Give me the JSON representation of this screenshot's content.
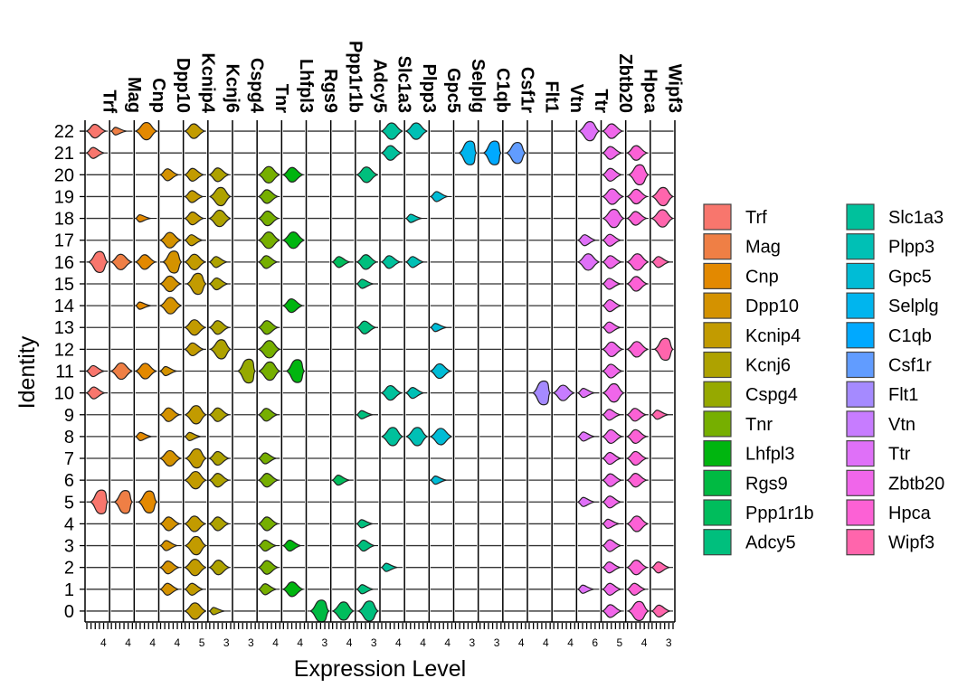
{
  "chart_data": {
    "type": "violin",
    "title": "",
    "xlabel": "Expression Level",
    "ylabel": "Identity",
    "identities": [
      "0",
      "1",
      "2",
      "3",
      "4",
      "5",
      "6",
      "7",
      "8",
      "9",
      "10",
      "11",
      "12",
      "13",
      "14",
      "15",
      "16",
      "17",
      "18",
      "19",
      "20",
      "21",
      "22"
    ],
    "genes": [
      {
        "name": "Trf",
        "color": "#F8766D",
        "max_tick": "4",
        "expr": {
          "5": 1.0,
          "16": 0.85,
          "11": 0.3,
          "10": 0.35,
          "21": 0.3,
          "22": 0.45
        }
      },
      {
        "name": "Mag",
        "color": "#EF7F45",
        "max_tick": "4",
        "expr": {
          "5": 0.95,
          "16": 0.55,
          "11": 0.6,
          "22": 0.12
        }
      },
      {
        "name": "Cnp",
        "color": "#E38900",
        "max_tick": "4",
        "expr": {
          "5": 0.9,
          "16": 0.5,
          "11": 0.55,
          "22": 0.65,
          "8": 0.15,
          "18": 0.1,
          "14": 0.1
        }
      },
      {
        "name": "Dpp10",
        "color": "#D49200",
        "max_tick": "4",
        "expr": {
          "16": 0.9,
          "17": 0.55,
          "15": 0.55,
          "14": 0.6,
          "7": 0.55,
          "4": 0.45,
          "2": 0.4,
          "3": 0.25,
          "20": 0.35,
          "1": 0.35,
          "9": 0.45,
          "11": 0.2
        }
      },
      {
        "name": "Kcnip4",
        "color": "#C29B00",
        "max_tick": "5",
        "expr": {
          "16": 0.55,
          "15": 0.85,
          "13": 0.55,
          "12": 0.4,
          "7": 0.75,
          "6": 0.65,
          "5": 0.0,
          "4": 0.55,
          "3": 0.7,
          "2": 0.6,
          "1": 0.35,
          "0": 0.6,
          "19": 0.35,
          "20": 0.4,
          "18": 0.4,
          "17": 0.3,
          "9": 0.7,
          "22": 0.5,
          "8": 0.15
        }
      },
      {
        "name": "Kcnj6",
        "color": "#AEA200",
        "max_tick": "3",
        "expr": {
          "19": 0.7,
          "18": 0.6,
          "20": 0.45,
          "13": 0.45,
          "12": 0.75,
          "16": 0.3,
          "15": 0.35,
          "7": 0.45,
          "6": 0.45,
          "4": 0.45,
          "2": 0.5,
          "9": 0.45,
          "0": 0.1
        }
      },
      {
        "name": "Cspg4",
        "color": "#96A900",
        "max_tick": "3",
        "expr": {
          "11": 1.0
        }
      },
      {
        "name": "Tnr",
        "color": "#76AF00",
        "max_tick": "4",
        "expr": {
          "20": 0.6,
          "19": 0.45,
          "18": 0.5,
          "17": 0.6,
          "13": 0.45,
          "12": 0.65,
          "11": 0.7,
          "16": 0.4,
          "9": 0.4,
          "7": 0.3,
          "6": 0.45,
          "4": 0.45,
          "3": 0.3,
          "2": 0.45,
          "1": 0.3
        }
      },
      {
        "name": "Lhfpl3",
        "color": "#00B50F",
        "max_tick": "4",
        "expr": {
          "20": 0.5,
          "17": 0.6,
          "14": 0.45,
          "11": 0.95,
          "3": 0.3,
          "1": 0.5
        }
      },
      {
        "name": "Rgs9",
        "color": "#00BA42",
        "max_tick": "3",
        "expr": {
          "0": 0.9
        }
      },
      {
        "name": "Ppp1r1b",
        "color": "#00BD5C",
        "max_tick": "4",
        "expr": {
          "0": 0.7,
          "16": 0.3,
          "6": 0.25
        }
      },
      {
        "name": "Adcy5",
        "color": "#00BF7D",
        "max_tick": "3",
        "expr": {
          "0": 0.8,
          "20": 0.55,
          "16": 0.5,
          "13": 0.4,
          "15": 0.2,
          "9": 0.15,
          "4": 0.15,
          "3": 0.3,
          "1": 0.2
        }
      },
      {
        "name": "Slc1a3",
        "color": "#00C19C",
        "max_tick": "4",
        "expr": {
          "22": 0.6,
          "21": 0.5,
          "16": 0.4,
          "10": 0.5,
          "8": 0.7,
          "2": 0.15
        }
      },
      {
        "name": "Plpp3",
        "color": "#00C0B5",
        "max_tick": "4",
        "expr": {
          "22": 0.6,
          "16": 0.3,
          "10": 0.3,
          "8": 0.7,
          "18": 0.15
        }
      },
      {
        "name": "Gpc5",
        "color": "#00BCD6",
        "max_tick": "4",
        "expr": {
          "19": 0.25,
          "11": 0.5,
          "8": 0.6,
          "6": 0.15,
          "13": 0.15
        }
      },
      {
        "name": "Selplg",
        "color": "#00B5EE",
        "max_tick": "3",
        "expr": {
          "21": 1.0
        }
      },
      {
        "name": "C1qb",
        "color": "#00A9FF",
        "max_tick": "3",
        "expr": {
          "21": 1.0
        }
      },
      {
        "name": "Csf1r",
        "color": "#619CFF",
        "max_tick": "4",
        "expr": {
          "21": 0.85
        }
      },
      {
        "name": "Flt1",
        "color": "#A58AFF",
        "max_tick": "4",
        "expr": {
          "10": 1.0
        }
      },
      {
        "name": "Vtn",
        "color": "#C77CFF",
        "max_tick": "4",
        "expr": {
          "10": 0.55
        }
      },
      {
        "name": "Ttr",
        "color": "#DF70F8",
        "max_tick": "6",
        "expr": {
          "22": 0.75,
          "16": 0.6,
          "17": 0.3,
          "10": 0.2,
          "8": 0.2,
          "5": 0.2,
          "1": 0.15
        }
      },
      {
        "name": "Zbtb20",
        "color": "#F066EA",
        "max_tick": "5",
        "expr": {
          "22": 0.5,
          "21": 0.4,
          "20": 0.4,
          "19": 0.55,
          "18": 0.7,
          "17": 0.35,
          "16": 0.4,
          "15": 0.3,
          "14": 0.35,
          "13": 0.3,
          "12": 0.5,
          "11": 0.45,
          "10": 0.7,
          "9": 0.3,
          "8": 0.45,
          "7": 0.35,
          "6": 0.4,
          "5": 0.35,
          "4": 0.2,
          "3": 0.35,
          "2": 0.3,
          "1": 0.35,
          "0": 0.4
        }
      },
      {
        "name": "Hpca",
        "color": "#FC61D5",
        "max_tick": "4",
        "expr": {
          "20": 0.8,
          "21": 0.5,
          "16": 0.6,
          "15": 0.5,
          "12": 0.55,
          "9": 0.4,
          "8": 0.45,
          "7": 0.45,
          "6": 0.45,
          "4": 0.55,
          "2": 0.5,
          "1": 0.35,
          "0": 0.75,
          "19": 0.5,
          "18": 0.45
        }
      },
      {
        "name": "Wipf3",
        "color": "#FF65AC",
        "max_tick": "3",
        "expr": {
          "19": 0.7,
          "18": 0.65,
          "12": 0.9,
          "16": 0.3,
          "9": 0.2,
          "2": 0.3,
          "0": 0.35
        }
      }
    ],
    "legend": {
      "position": "right",
      "columns": 2
    }
  }
}
